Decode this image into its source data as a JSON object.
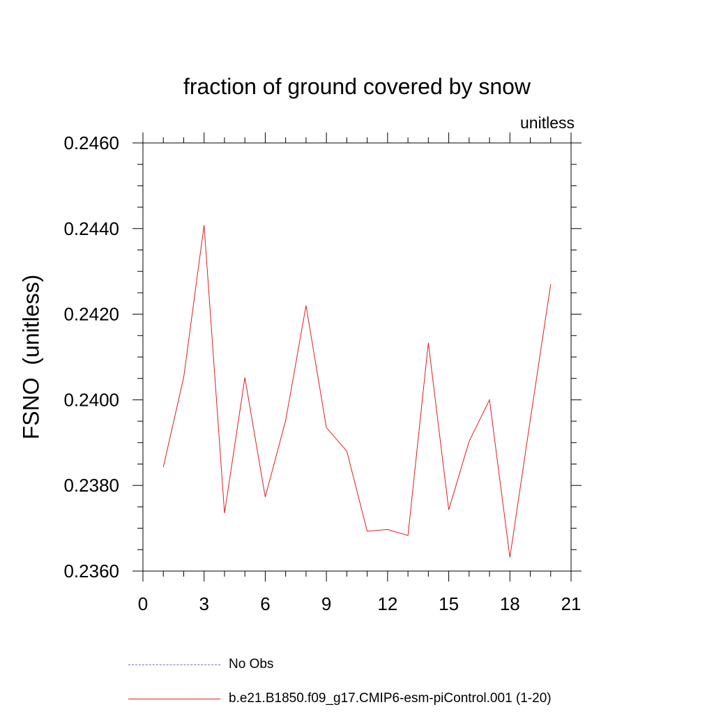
{
  "chart_data": {
    "type": "line",
    "title": "fraction of ground covered by snow",
    "units_label": "unitless",
    "ylabel": "FSNO  (unitless)",
    "xlabel": "",
    "xlim": [
      0,
      21
    ],
    "ylim": [
      0.236,
      0.246
    ],
    "x_ticks": [
      "0",
      "3",
      "6",
      "9",
      "12",
      "15",
      "18",
      "21"
    ],
    "y_ticks": [
      "0.2360",
      "0.2380",
      "0.2400",
      "0.2420",
      "0.2440",
      "0.2460"
    ],
    "grid": false,
    "series": [
      {
        "name": "b.e21.B1850.f09_g17.CMIP6-esm-piControl.001 (1-20)",
        "color": "#e8191c",
        "style": "solid",
        "x": [
          1,
          2,
          3,
          4,
          5,
          6,
          7,
          8,
          9,
          10,
          11,
          12,
          13,
          14,
          15,
          16,
          17,
          18,
          19,
          20
        ],
        "values": [
          0.23843,
          0.24053,
          0.24408,
          0.23735,
          0.24052,
          0.23773,
          0.23952,
          0.2422,
          0.23935,
          0.2388,
          0.23693,
          0.23697,
          0.23683,
          0.24133,
          0.23743,
          0.23903,
          0.24,
          0.23632,
          0.23953,
          0.2427
        ]
      }
    ],
    "legend_placement": "bottom",
    "legend": [
      {
        "label": "No Obs",
        "color": "#7070c8",
        "style": "dashed"
      },
      {
        "label": "b.e21.B1850.f09_g17.CMIP6-esm-piControl.001 (1-20)",
        "color": "#e8191c",
        "style": "solid"
      }
    ]
  }
}
